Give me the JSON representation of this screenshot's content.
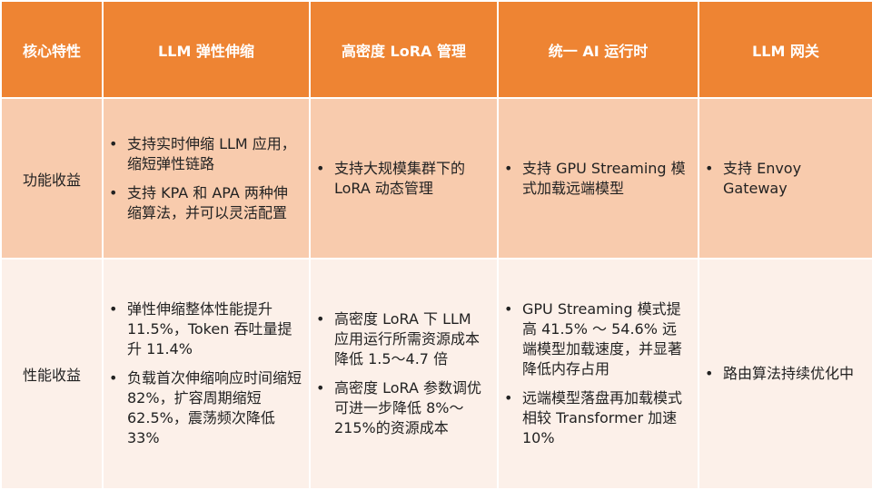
{
  "headers": [
    "核心特性",
    "LLM 弹性伸缩",
    "高密度 LoRA 管理",
    "统一 AI 运行时",
    "LLM 网关"
  ],
  "rows": [
    {
      "label": "功能收益",
      "cells": [
        [
          "支持实时伸缩 LLM 应用，缩短弹性链路",
          "支持 KPA 和 APA 两种伸缩算法，并可以灵活配置"
        ],
        [
          "支持大规模集群下的 LoRA 动态管理"
        ],
        [
          "支持 GPU Streaming 模式加载远端模型"
        ],
        [
          "支持 Envoy Gateway"
        ]
      ]
    },
    {
      "label": "性能收益",
      "cells": [
        [
          "弹性伸缩整体性能提升 11.5%，Token 吞吐量提升 11.4%",
          "负载首次伸缩响应时间缩短 82%，扩容周期缩短 62.5%，震荡频次降低 33%"
        ],
        [
          "高密度 LoRA 下 LLM 应用运行所需资源成本降低 1.5～4.7 倍",
          "高密度 LoRA 参数调优可进一步降低 8%～215%的资源成本"
        ],
        [
          "GPU Streaming 模式提高 41.5% ～ 54.6% 远端模型加载速度，并显著降低内存占用",
          "远端模型落盘再加载模式相较 Transformer 加速 10%"
        ],
        [
          "路由算法持续优化中"
        ]
      ]
    }
  ],
  "colors": {
    "header": "#EE8433",
    "row1": "#F8CBAD",
    "row2": "#FCF0E9"
  }
}
